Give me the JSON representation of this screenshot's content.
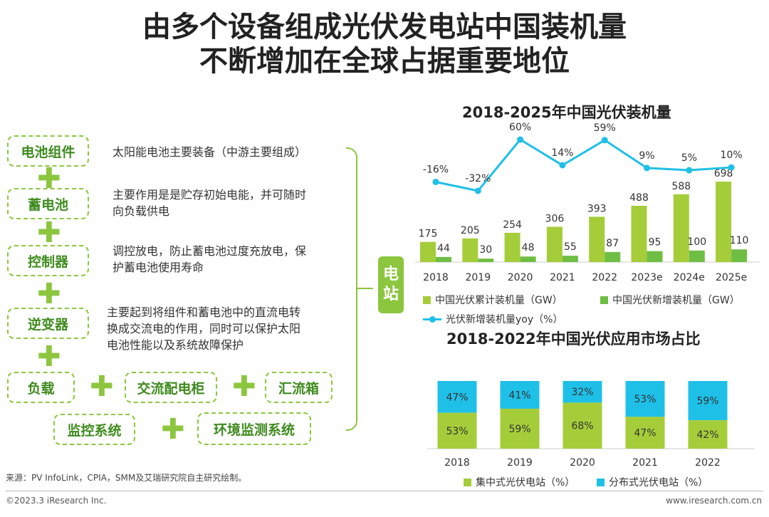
{
  "title": {
    "line1": "由多个设备组成光伏发电站中国装机量",
    "line2": "不断增加在全球占据重要地位"
  },
  "components": [
    {
      "label": "电池组件",
      "desc": [
        "太阳能电池主要装备（中游主要组成）"
      ]
    },
    {
      "label": "蓄电池",
      "desc": [
        "主要作用是是贮存初始电能，并可随时",
        "向负载供电"
      ]
    },
    {
      "label": "控制器",
      "desc": [
        "调控放电，防止蓄电池过度充放电，保",
        "护蓄电池使用寿命"
      ]
    },
    {
      "label": "逆变器",
      "desc": [
        "主要起到将组件和蓄电池中的直流电转",
        "换成交流电的作用，同时可以保护太阳",
        "电池性能以及系统故障保护"
      ]
    }
  ],
  "plus_symbol": "✚",
  "bottom_components": [
    "负载",
    "交流配电柜",
    "汇流箱",
    "监控系统",
    "环境监测系统"
  ],
  "station_label": "电\n站",
  "colors": {
    "green_light": "#a5cd39",
    "green_dark": "#6fbe44",
    "cyan": "#1fc0e8",
    "box_border": "#8cc63f",
    "box_text": "#3f8b1e"
  },
  "chart_data": [
    {
      "type": "bar",
      "title": "2018-2025年中国光伏装机量",
      "categories": [
        "2018",
        "2019",
        "2020",
        "2021",
        "2022",
        "2023e",
        "2024e",
        "2025e"
      ],
      "series": [
        {
          "name": "中国光伏累计装机量（GW）",
          "type": "bar",
          "values": [
            175,
            205,
            254,
            306,
            393,
            488,
            588,
            698
          ]
        },
        {
          "name": "中国光伏新增装机量（GW）",
          "type": "bar",
          "values": [
            44,
            30,
            48,
            55,
            87,
            95,
            100,
            110
          ]
        },
        {
          "name": "光伏新增装机量yoy（%）",
          "type": "line",
          "values": [
            -16,
            -32,
            60,
            14,
            59,
            9,
            5,
            10
          ],
          "labels": [
            "-16%",
            "-32%",
            "60%",
            "14%",
            "59%",
            "9%",
            "5%",
            "10%"
          ]
        }
      ],
      "legend": "bottom"
    },
    {
      "type": "bar",
      "stacked": true,
      "title": "2018-2022年中国光伏应用市场占比",
      "categories": [
        "2018",
        "2019",
        "2020",
        "2021",
        "2022"
      ],
      "series": [
        {
          "name": "集中式光伏电站（%）",
          "values": [
            53,
            59,
            68,
            47,
            42
          ],
          "labels": [
            "53%",
            "59%",
            "68%",
            "47%",
            "42%"
          ]
        },
        {
          "name": "分布式光伏电站（%）",
          "values": [
            47,
            41,
            32,
            53,
            59
          ],
          "labels": [
            "47%",
            "41%",
            "32%",
            "53%",
            "59%"
          ]
        }
      ],
      "ylim": [
        0,
        100
      ],
      "legend": "bottom"
    }
  ],
  "footer": {
    "source": "来源：PV InfoLink，CPIA，SMM及艾瑞研究院自主研究绘制。",
    "copyright": "©2023.3 iResearch Inc.",
    "website": "www.iresearch.com.cn"
  }
}
